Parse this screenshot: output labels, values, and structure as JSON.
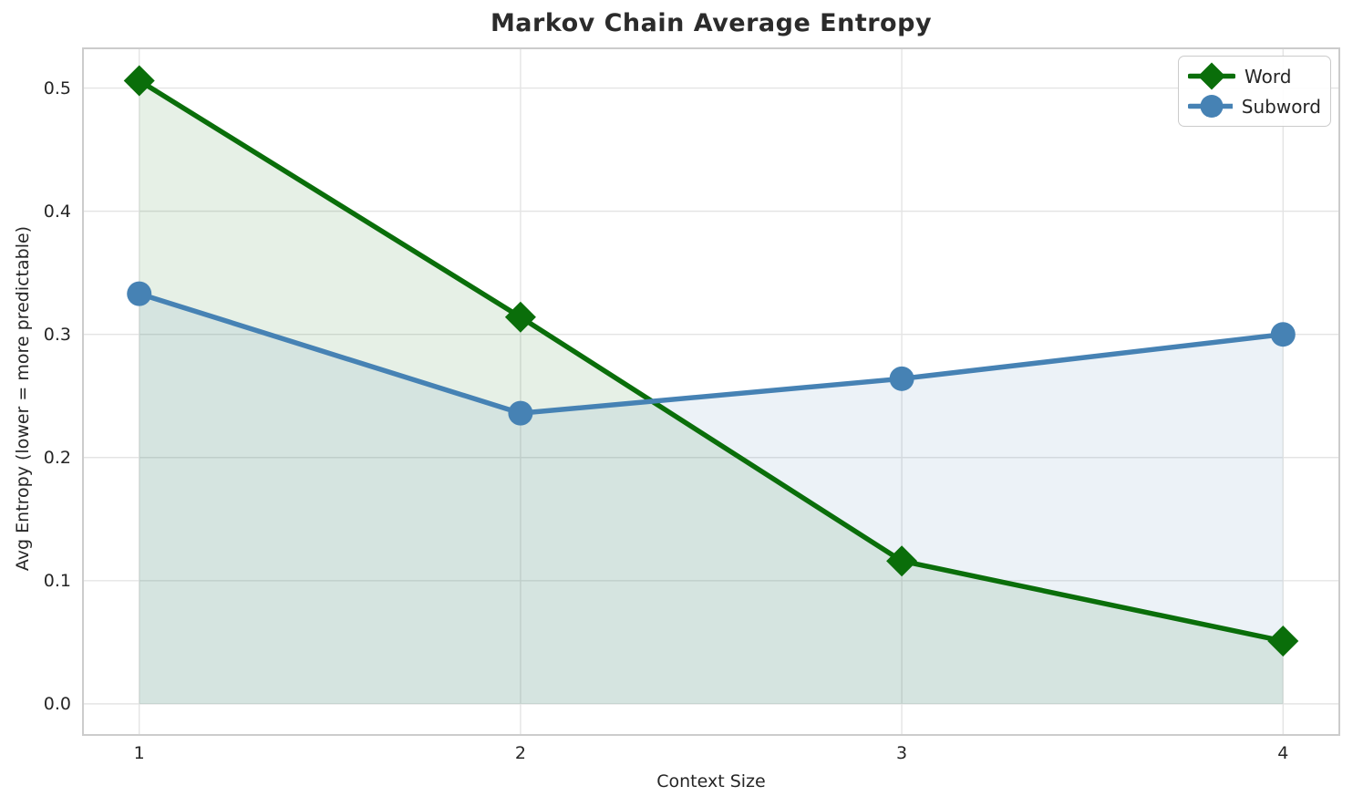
{
  "chart_data": {
    "type": "line",
    "title": "Markov Chain Average Entropy",
    "xlabel": "Context Size",
    "ylabel": "Avg Entropy (lower = more predictable)",
    "x": [
      1,
      2,
      3,
      4
    ],
    "xticks": [
      1,
      2,
      3,
      4
    ],
    "xtick_labels": [
      "1",
      "2",
      "3",
      "4"
    ],
    "yticks": [
      0.0,
      0.1,
      0.2,
      0.3,
      0.4,
      0.5
    ],
    "ytick_labels": [
      "0.0",
      "0.1",
      "0.2",
      "0.3",
      "0.4",
      "0.5"
    ],
    "xlim": [
      0.85,
      4.15
    ],
    "ylim": [
      -0.026,
      0.533
    ],
    "grid": true,
    "legend_position": "upper right",
    "area_baseline": 0,
    "series": [
      {
        "name": "Word",
        "marker": "diamond",
        "color": "#0a6e0a",
        "fill_opacity": 0.1,
        "values": [
          0.506,
          0.314,
          0.116,
          0.051
        ]
      },
      {
        "name": "Subword",
        "marker": "circle",
        "color": "#4682b4",
        "fill_opacity": 0.1,
        "values": [
          0.333,
          0.236,
          0.264,
          0.3
        ]
      }
    ]
  }
}
